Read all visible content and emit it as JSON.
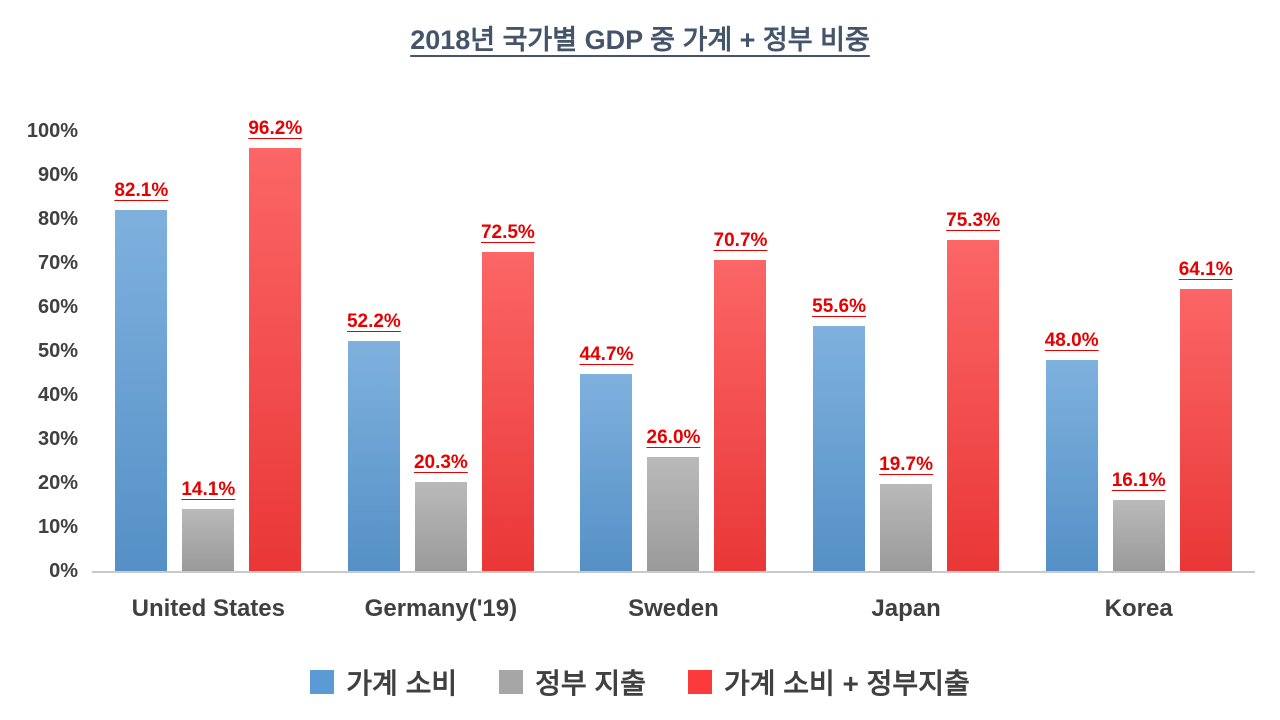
{
  "title": "2018년 국가별 GDP 중 가계 + 정부 비중",
  "chart_data": {
    "type": "bar",
    "title": "2018년 국가별 GDP 중 가계 + 정부 비중",
    "categories": [
      "United States",
      "Germany('19)",
      "Sweden",
      "Japan",
      "Korea"
    ],
    "series": [
      {
        "name": "가계 소비",
        "color": "#5B9BD5",
        "values": [
          82.1,
          52.2,
          44.7,
          55.6,
          48.0
        ]
      },
      {
        "name": "정부 지출",
        "color": "#A6A6A6",
        "values": [
          14.1,
          20.3,
          26.0,
          19.7,
          16.1
        ]
      },
      {
        "name": "가계 소비 + 정부지출",
        "color": "#FB3B3B",
        "values": [
          96.2,
          72.5,
          70.7,
          75.3,
          64.1
        ]
      }
    ],
    "ylim": [
      0,
      100
    ],
    "yticks": [
      "100%",
      "90%",
      "80%",
      "70%",
      "60%",
      "50%",
      "40%",
      "30%",
      "20%",
      "10%",
      "0%"
    ],
    "data_label_suffix": "%",
    "data_label_color": "#E60000",
    "grid": false,
    "legend_position": "bottom"
  },
  "colors": {
    "title": "#44546A",
    "axis_text": "#404040",
    "axis_line": "#C9C9C9",
    "background": "#FFFFFF"
  }
}
